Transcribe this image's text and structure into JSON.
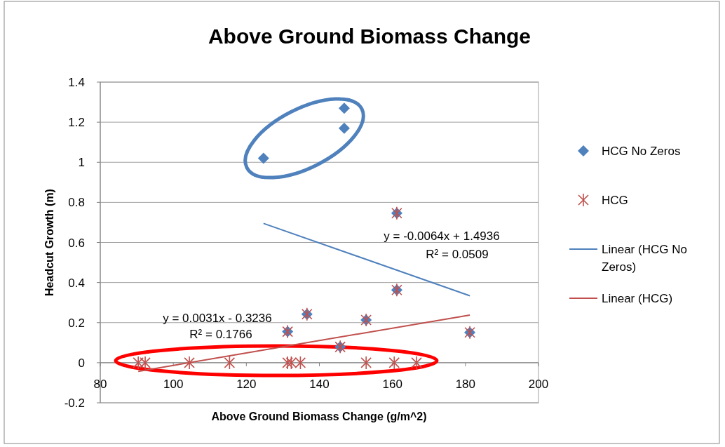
{
  "chart_data": {
    "type": "scatter",
    "title": "Above Ground Biomass Change",
    "xlabel": "Above Ground Biomass Change (g/m^2)",
    "ylabel": "Headcut Growth (m)",
    "xlim": [
      80,
      200
    ],
    "xticks": [
      80,
      100,
      120,
      140,
      160,
      180,
      200
    ],
    "ylim": [
      -0.2,
      1.4
    ],
    "yticks": [
      -0.2,
      0,
      0.2,
      0.4,
      0.6,
      0.8,
      1,
      1.2,
      1.4
    ],
    "grid": "y",
    "legend": "right",
    "series": [
      {
        "name": "HCG No Zeros",
        "marker": "diamond",
        "color": "#4f81bd",
        "x": [
          124.7,
          146.8,
          146.8,
          131.3,
          136.6,
          145.7,
          152.8,
          161.2,
          161.2,
          181.2
        ],
        "values": [
          1.02,
          1.27,
          1.17,
          0.155,
          0.242,
          0.079,
          0.213,
          0.363,
          0.746,
          0.151
        ]
      },
      {
        "name": "HCG",
        "marker": "cross",
        "color": "#c0504d",
        "x": [
          131.3,
          136.6,
          145.7,
          152.8,
          161.2,
          161.2,
          181.2,
          90.4,
          92.3,
          104.4,
          115.4,
          131.3,
          132.3,
          134.8,
          152.8,
          160.5,
          166.6
        ],
        "values": [
          0.155,
          0.242,
          0.079,
          0.213,
          0.363,
          0.746,
          0.151,
          0,
          0,
          0,
          0,
          0,
          0,
          0,
          0,
          0,
          0
        ]
      },
      {
        "name": "Linear (HCG No Zeros)",
        "type": "line",
        "marker": "none",
        "color": "#4f81bd",
        "x": [
          124.7,
          181.2
        ],
        "values": [
          0.695,
          0.334
        ]
      },
      {
        "name": "Linear (HCG)",
        "type": "line",
        "marker": "none",
        "color": "#c0504d",
        "x": [
          90.4,
          181.2
        ],
        "values": [
          -0.043,
          0.238
        ]
      }
    ],
    "annotations": [
      "y = -0.0064x + 1.4936",
      "R² = 0.0509",
      "y = 0.0031x - 0.3236",
      "R² = 0.1766"
    ]
  }
}
